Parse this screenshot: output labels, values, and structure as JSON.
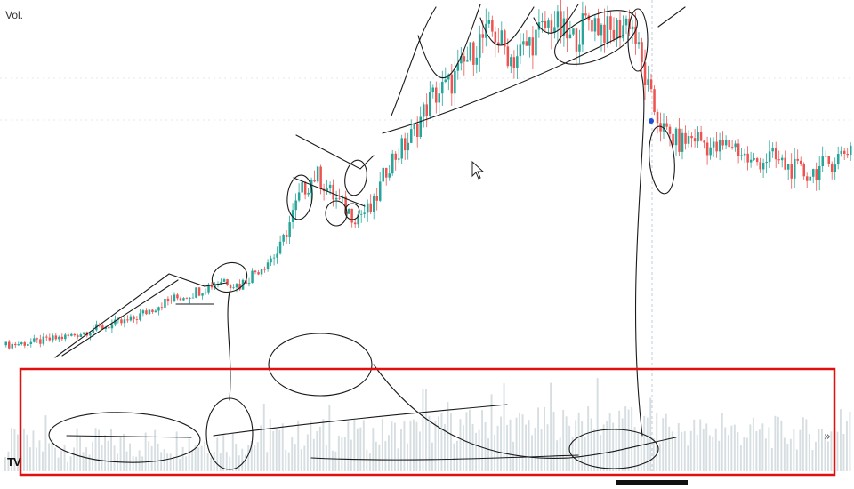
{
  "chart_data": {
    "type": "candlestick",
    "title": "",
    "volume_label": "Vol.",
    "platform_mark": "TV",
    "scroll_glyph": "»",
    "xlabel": "",
    "ylabel": "",
    "ylim": [
      0,
      100
    ],
    "grid": false,
    "colors": {
      "up": "#26a69a",
      "down": "#ef5350",
      "volume": "#cfd8dc",
      "annotation_ink": "#1a1a1a",
      "highlight_box": "#e01010",
      "marker": "#1f4fd1",
      "guide": "#9fb3c8"
    },
    "close_path": [
      [
        0,
        3
      ],
      [
        10,
        4
      ],
      [
        20,
        5.5
      ],
      [
        30,
        8
      ],
      [
        40,
        10
      ],
      [
        50,
        15
      ],
      [
        60,
        18
      ],
      [
        70,
        22
      ],
      [
        75,
        20
      ],
      [
        80,
        24
      ],
      [
        88,
        30
      ],
      [
        95,
        47
      ],
      [
        100,
        52
      ],
      [
        105,
        46
      ],
      [
        112,
        40
      ],
      [
        118,
        42
      ],
      [
        123,
        55
      ],
      [
        130,
        62
      ],
      [
        137,
        74
      ],
      [
        143,
        78
      ],
      [
        148,
        84
      ],
      [
        152,
        90
      ],
      [
        157,
        93
      ],
      [
        163,
        85
      ],
      [
        169,
        90
      ],
      [
        176,
        96
      ],
      [
        182,
        90
      ],
      [
        188,
        97
      ],
      [
        195,
        92
      ],
      [
        201,
        97
      ],
      [
        205,
        82
      ],
      [
        208,
        72
      ],
      [
        212,
        64
      ],
      [
        217,
        61
      ],
      [
        222,
        63
      ],
      [
        228,
        59
      ],
      [
        234,
        61
      ],
      [
        240,
        55
      ],
      [
        246,
        57
      ],
      [
        252,
        54
      ],
      [
        258,
        52
      ],
      [
        265,
        55
      ],
      [
        272,
        60
      ]
    ],
    "candle_count": 272,
    "volume_count": 272,
    "highlight_region": "volume-pane"
  }
}
